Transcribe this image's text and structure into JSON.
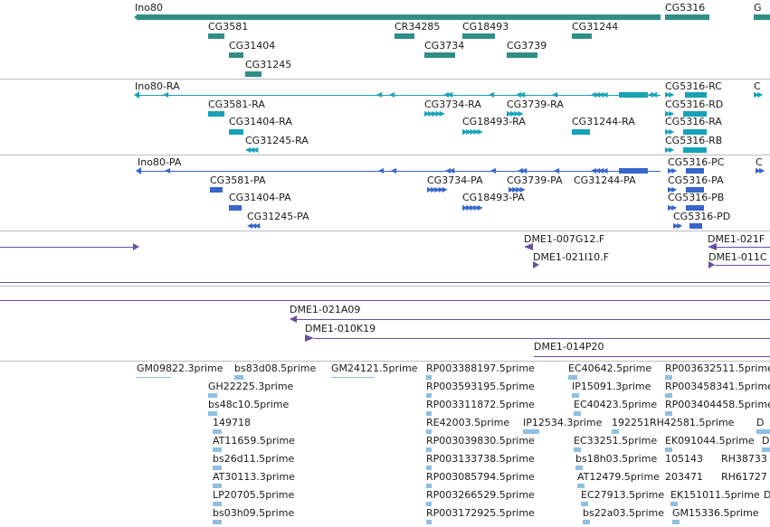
{
  "colors": {
    "gene": "#2f8f86",
    "transcript": "#17a2b8",
    "protein": "#3866c8",
    "clone": "#6a4fa0",
    "est": "#8fbfe3",
    "separator": "#b9bec4"
  },
  "genes": {
    "row1": [
      "Ino80",
      "CG5316",
      "G"
    ],
    "row2": [
      "CG3581",
      "CR34285",
      "CG18493",
      "CG31244"
    ],
    "row3": [
      "CG31404",
      "CG3734",
      "CG3739"
    ],
    "row4": [
      "CG31245"
    ]
  },
  "transcripts": {
    "row1": [
      "Ino80-RA",
      "CG5316-RC",
      "C"
    ],
    "row2": [
      "CG3581-RA",
      "CG3734-RA",
      "CG3739-RA",
      "CG5316-RD"
    ],
    "row3": [
      "CG31404-RA",
      "CG18493-RA",
      "CG31244-RA",
      "CG5316-RA"
    ],
    "row4": [
      "CG31245-RA",
      "CG5316-RB"
    ]
  },
  "proteins": {
    "row1": [
      "Ino80-PA",
      "CG5316-PC",
      "C"
    ],
    "row2": [
      "CG3581-PA",
      "CG3734-PA",
      "CG3739-PA",
      "CG31244-PA",
      "CG5316-PA"
    ],
    "row3": [
      "CG31404-PA",
      "CG18493-PA",
      "CG5316-PB"
    ],
    "row4": [
      "CG31245-PA",
      "CG5316-PD"
    ]
  },
  "clones1": [
    "DME1-007G12.F",
    "DME1-021F",
    "DME1-021I10.F",
    "DME1-011C"
  ],
  "clones2": [
    "DME1-021A09",
    "DME1-010K19",
    "DME1-014P20"
  ],
  "ests": {
    "col1": [
      "GM09822.3prime",
      "bs83d08.5prime",
      "GM24121.5prime"
    ],
    "col2": [
      "GH22225.3prime",
      "bs48c10.5prime",
      "149718",
      "AT11659.5prime",
      "bs26d11.5prime",
      "AT30113.3prime",
      "LP20705.5prime",
      "bs03h09.5prime"
    ],
    "col3": [
      "RP003388197.5prime",
      "RP003593195.5prime",
      "RP003311872.5prime",
      "RE42003.5prime",
      "RP003039830.5prime",
      "RP003133738.5prime",
      "RP003085794.5prime",
      "RP003266529.5prime",
      "RP003172925.5prime"
    ],
    "col4": [
      "EC40642.5prime",
      "IP15091.3prime",
      "EC40423.5prime",
      "IP12534.3prime",
      "192251",
      "EC33251.5prime",
      "bs18h03.5prime",
      "AT12479.5prime",
      "EC27913.5prime",
      "bs22a03.5prime"
    ],
    "col5": [
      "RP003632511.5prime",
      "RP003458341.5prime",
      "RP003404458.5prime",
      "RH42581.5prime",
      "EK091044.5prime",
      "105143",
      "203471",
      "EK151011.5prime",
      "GM15336.5prime",
      "D",
      "D",
      "RH38733",
      "RH61727",
      "D"
    ]
  }
}
